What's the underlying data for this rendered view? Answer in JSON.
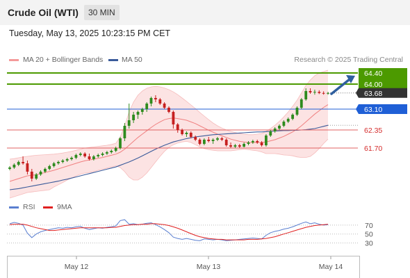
{
  "header": {
    "title": "Crude Oil (WTI)",
    "timeframe": "30 MIN",
    "datetime": "Tuesday, May 13, 2025 10:23:15 PM CET"
  },
  "legend": {
    "ma20": "MA 20 + Bollinger Bands",
    "ma50": "MA 50",
    "credit": "Research © 2025 Trading Central",
    "ma20_color": "#f08080",
    "ma50_color": "#3a5a9a"
  },
  "rsi_legend": {
    "rsi": "RSI",
    "ma9": "9MA",
    "rsi_color": "#5a7fd0",
    "ma9_color": "#e02020"
  },
  "chart_data": [
    {
      "type": "candlestick",
      "title": "Crude Oil (WTI)",
      "x_ticks": [
        "May 12",
        "May 13",
        "May 14"
      ],
      "ylim": [
        59.9,
        64.6
      ],
      "levels": {
        "resistance": [
          {
            "label": "64.40",
            "value": 64.4,
            "color": "#4c9a00"
          },
          {
            "label": "64.00",
            "value": 64.0,
            "color": "#4c9a00"
          }
        ],
        "pivot": {
          "label": "63.10",
          "value": 63.1,
          "color": "#1f5fd6"
        },
        "support": [
          {
            "label": "62.35",
            "value": 62.35,
            "color": "#e06060"
          },
          {
            "label": "61.70",
            "value": 61.7,
            "color": "#e06060"
          }
        ],
        "last_price": {
          "label": "63.68",
          "value": 63.68,
          "color": "#333333"
        }
      },
      "candles": [
        [
          60.95,
          61.05,
          60.9,
          61.0
        ],
        [
          61.0,
          61.15,
          60.95,
          61.1
        ],
        [
          61.1,
          61.25,
          61.05,
          61.2
        ],
        [
          61.2,
          61.4,
          61.1,
          61.15
        ],
        [
          61.15,
          61.25,
          60.75,
          60.85
        ],
        [
          60.85,
          60.95,
          60.5,
          60.6
        ],
        [
          60.6,
          60.8,
          60.55,
          60.75
        ],
        [
          60.75,
          60.9,
          60.7,
          60.85
        ],
        [
          60.85,
          61.0,
          60.8,
          60.95
        ],
        [
          60.95,
          61.1,
          60.9,
          61.05
        ],
        [
          61.05,
          61.2,
          61.0,
          61.15
        ],
        [
          61.15,
          61.25,
          61.1,
          61.2
        ],
        [
          61.2,
          61.3,
          61.15,
          61.25
        ],
        [
          61.25,
          61.35,
          61.2,
          61.3
        ],
        [
          61.3,
          61.4,
          61.25,
          61.35
        ],
        [
          61.35,
          61.5,
          61.3,
          61.45
        ],
        [
          61.45,
          61.55,
          61.4,
          61.5
        ],
        [
          61.5,
          61.55,
          61.35,
          61.4
        ],
        [
          61.4,
          61.5,
          61.25,
          61.3
        ],
        [
          61.3,
          61.45,
          61.25,
          61.4
        ],
        [
          61.4,
          61.5,
          61.35,
          61.45
        ],
        [
          61.45,
          61.55,
          61.4,
          61.5
        ],
        [
          61.5,
          61.6,
          61.45,
          61.55
        ],
        [
          61.55,
          61.65,
          61.5,
          61.6
        ],
        [
          61.6,
          61.75,
          61.55,
          61.7
        ],
        [
          61.7,
          62.1,
          61.65,
          62.05
        ],
        [
          62.05,
          62.6,
          61.95,
          62.5
        ],
        [
          62.5,
          63.3,
          62.4,
          62.7
        ],
        [
          62.7,
          63.0,
          62.6,
          62.9
        ],
        [
          62.9,
          63.05,
          62.75,
          63.0
        ],
        [
          63.0,
          63.15,
          62.9,
          63.1
        ],
        [
          63.1,
          63.35,
          63.0,
          63.3
        ],
        [
          63.3,
          63.55,
          63.2,
          63.5
        ],
        [
          63.5,
          63.6,
          63.35,
          63.45
        ],
        [
          63.45,
          63.5,
          63.25,
          63.3
        ],
        [
          63.3,
          63.35,
          63.1,
          63.15
        ],
        [
          63.15,
          63.2,
          62.95,
          63.0
        ],
        [
          63.0,
          63.05,
          62.4,
          62.55
        ],
        [
          62.55,
          62.6,
          62.25,
          62.35
        ],
        [
          62.35,
          62.4,
          62.15,
          62.2
        ],
        [
          62.2,
          62.3,
          62.1,
          62.25
        ],
        [
          62.25,
          62.3,
          62.05,
          62.1
        ],
        [
          62.1,
          62.15,
          61.95,
          62.0
        ],
        [
          62.0,
          62.05,
          61.8,
          61.85
        ],
        [
          61.85,
          62.05,
          61.8,
          62.0
        ],
        [
          62.0,
          62.1,
          61.9,
          61.95
        ],
        [
          61.95,
          62.05,
          61.85,
          62.0
        ],
        [
          62.0,
          62.1,
          61.95,
          62.05
        ],
        [
          62.05,
          62.1,
          61.95,
          62.0
        ],
        [
          62.0,
          62.05,
          61.75,
          61.8
        ],
        [
          61.8,
          61.9,
          61.7,
          61.75
        ],
        [
          61.75,
          61.85,
          61.7,
          61.8
        ],
        [
          61.8,
          61.85,
          61.7,
          61.75
        ],
        [
          61.75,
          61.9,
          61.72,
          61.85
        ],
        [
          61.85,
          61.95,
          61.8,
          61.9
        ],
        [
          61.9,
          62.0,
          61.85,
          61.95
        ],
        [
          61.95,
          62.0,
          61.85,
          61.9
        ],
        [
          61.9,
          61.95,
          61.75,
          61.8
        ],
        [
          61.8,
          62.2,
          61.75,
          62.15
        ],
        [
          62.15,
          62.35,
          62.1,
          62.3
        ],
        [
          62.3,
          62.45,
          62.25,
          62.4
        ],
        [
          62.4,
          62.55,
          62.35,
          62.5
        ],
        [
          62.5,
          62.7,
          62.45,
          62.65
        ],
        [
          62.65,
          62.8,
          62.6,
          62.75
        ],
        [
          62.75,
          62.95,
          62.7,
          62.9
        ],
        [
          62.9,
          63.2,
          62.85,
          63.15
        ],
        [
          63.15,
          63.5,
          63.1,
          63.45
        ],
        [
          63.45,
          63.85,
          63.4,
          63.75
        ],
        [
          63.75,
          63.85,
          63.65,
          63.7
        ],
        [
          63.7,
          63.8,
          63.62,
          63.72
        ],
        [
          63.72,
          63.78,
          63.64,
          63.68
        ],
        [
          63.68,
          63.74,
          63.62,
          63.66
        ],
        [
          63.66,
          63.72,
          63.62,
          63.68
        ]
      ],
      "ma20": [
        60.5,
        60.55,
        60.6,
        60.65,
        60.7,
        60.72,
        60.74,
        60.78,
        60.82,
        60.86,
        60.9,
        60.95,
        61.0,
        61.05,
        61.1,
        61.15,
        61.2,
        61.24,
        61.27,
        61.3,
        61.33,
        61.36,
        61.4,
        61.44,
        61.48,
        61.55,
        61.66,
        61.8,
        61.94,
        62.08,
        62.2,
        62.32,
        62.44,
        62.55,
        62.64,
        62.72,
        62.76,
        62.78,
        62.76,
        62.73,
        62.7,
        62.64,
        62.58,
        62.5,
        62.42,
        62.34,
        62.27,
        62.2,
        62.14,
        62.08,
        62.02,
        61.98,
        61.94,
        61.92,
        61.9,
        61.9,
        61.9,
        61.9,
        61.92,
        61.96,
        62.0,
        62.06,
        62.12,
        62.2,
        62.28,
        62.38,
        62.5,
        62.64,
        62.78,
        62.92,
        63.04,
        63.16,
        63.26
      ],
      "bb_upper": [
        61.3,
        61.32,
        61.35,
        61.38,
        61.4,
        61.42,
        61.44,
        61.45,
        61.46,
        61.47,
        61.48,
        61.5,
        61.52,
        61.55,
        61.58,
        61.62,
        61.66,
        61.7,
        61.72,
        61.74,
        61.76,
        61.78,
        61.8,
        61.83,
        61.87,
        62.1,
        62.5,
        63.0,
        63.35,
        63.6,
        63.75,
        63.85,
        63.9,
        63.92,
        63.9,
        63.86,
        63.8,
        63.72,
        63.62,
        63.5,
        63.38,
        63.25,
        63.12,
        62.98,
        62.85,
        62.72,
        62.6,
        62.5,
        62.42,
        62.35,
        62.3,
        62.26,
        62.22,
        62.2,
        62.18,
        62.18,
        62.2,
        62.22,
        62.3,
        62.4,
        62.52,
        62.66,
        62.82,
        63.0,
        63.2,
        63.42,
        63.68,
        63.95,
        64.15,
        64.3,
        64.4,
        64.45,
        64.5
      ],
      "bb_lower": [
        59.9,
        59.95,
        60.0,
        60.05,
        60.1,
        60.12,
        60.14,
        60.16,
        60.18,
        60.2,
        60.3,
        60.38,
        60.46,
        60.55,
        60.62,
        60.7,
        60.76,
        60.8,
        60.82,
        60.86,
        60.9,
        60.94,
        60.98,
        61.02,
        61.06,
        61.0,
        60.85,
        60.65,
        60.55,
        60.55,
        60.65,
        60.8,
        61.0,
        61.2,
        61.4,
        61.58,
        61.72,
        61.82,
        61.88,
        61.92,
        61.94,
        61.9,
        61.82,
        61.74,
        61.68,
        61.64,
        61.62,
        61.6,
        61.6,
        61.6,
        61.6,
        61.62,
        61.64,
        61.66,
        61.64,
        61.62,
        61.6,
        61.56,
        61.5,
        61.5,
        61.5,
        61.48,
        61.45,
        61.44,
        61.42,
        61.38,
        61.36,
        61.36,
        61.4,
        61.52,
        61.68,
        61.86,
        62.02
      ],
      "ma50": [
        60.2,
        60.22,
        60.24,
        60.27,
        60.3,
        60.33,
        60.36,
        60.39,
        60.42,
        60.45,
        60.48,
        60.51,
        60.55,
        60.58,
        60.62,
        60.66,
        60.7,
        60.74,
        60.78,
        60.82,
        60.86,
        60.9,
        60.94,
        60.98,
        61.02,
        61.08,
        61.14,
        61.2,
        61.27,
        61.34,
        61.42,
        61.5,
        61.58,
        61.66,
        61.73,
        61.8,
        61.86,
        61.92,
        61.96,
        62.0,
        62.04,
        62.07,
        62.1,
        62.12,
        62.14,
        62.16,
        62.18,
        62.19,
        62.2,
        62.21,
        62.22,
        62.23,
        62.24,
        62.25,
        62.26,
        62.27,
        62.28,
        62.28,
        62.29,
        62.3,
        62.31,
        62.32,
        62.33,
        62.33,
        62.34,
        62.34,
        62.35,
        62.36,
        62.38,
        62.4,
        62.44,
        62.48,
        62.52
      ]
    },
    {
      "type": "line",
      "title": "RSI",
      "y_ticks": [
        70,
        50,
        30
      ],
      "ylim": [
        20,
        90
      ],
      "series": [
        {
          "name": "RSI",
          "values": [
            73,
            76,
            74,
            70,
            52,
            42,
            50,
            55,
            58,
            60,
            62,
            64,
            63,
            65,
            64,
            66,
            67,
            63,
            60,
            62,
            64,
            63,
            65,
            66,
            68,
            80,
            82,
            72,
            73,
            71,
            72,
            74,
            75,
            71,
            66,
            60,
            53,
            43,
            40,
            38,
            40,
            38,
            36,
            35,
            39,
            38,
            37,
            38,
            37,
            35,
            36,
            37,
            38,
            39,
            40,
            41,
            40,
            39,
            47,
            53,
            56,
            58,
            61,
            63,
            66,
            70,
            74,
            77,
            73,
            75,
            72,
            70,
            71
          ]
        },
        {
          "name": "9MA",
          "values": [
            71,
            72,
            72,
            72,
            70,
            67,
            64,
            62,
            60,
            58,
            58,
            59,
            60,
            61,
            62,
            63,
            64,
            64,
            64,
            64,
            64,
            64,
            64,
            65,
            65,
            67,
            69,
            70,
            71,
            71,
            72,
            72,
            73,
            73,
            72,
            71,
            69,
            66,
            63,
            59,
            55,
            51,
            47,
            44,
            42,
            40,
            39,
            38,
            38,
            37,
            37,
            37,
            37,
            37,
            38,
            38,
            38,
            39,
            40,
            42,
            44,
            47,
            50,
            53,
            56,
            59,
            62,
            65,
            67,
            69,
            70,
            71,
            72
          ]
        }
      ]
    }
  ]
}
